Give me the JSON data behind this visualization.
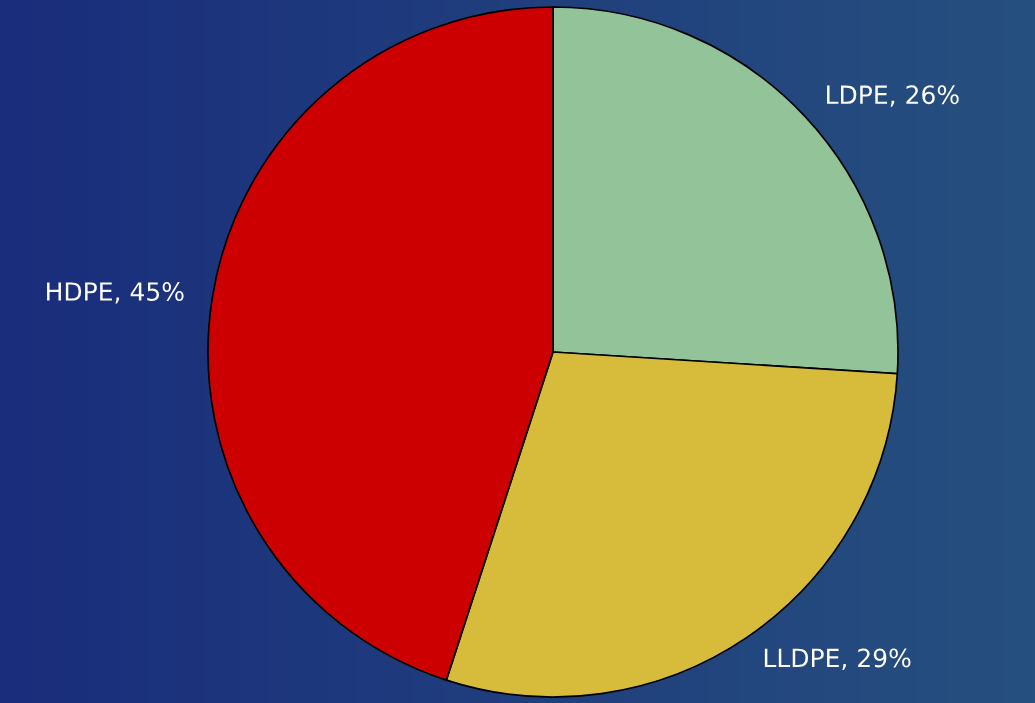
{
  "chart_data": {
    "type": "pie",
    "categories": [
      "LDPE",
      "LLDPE",
      "HDPE"
    ],
    "values": [
      26,
      29,
      45
    ],
    "colors": [
      "#93c499",
      "#d7bb3b",
      "#cc0000"
    ],
    "value_labels": [
      "26%",
      "29%",
      "45%"
    ]
  }
}
